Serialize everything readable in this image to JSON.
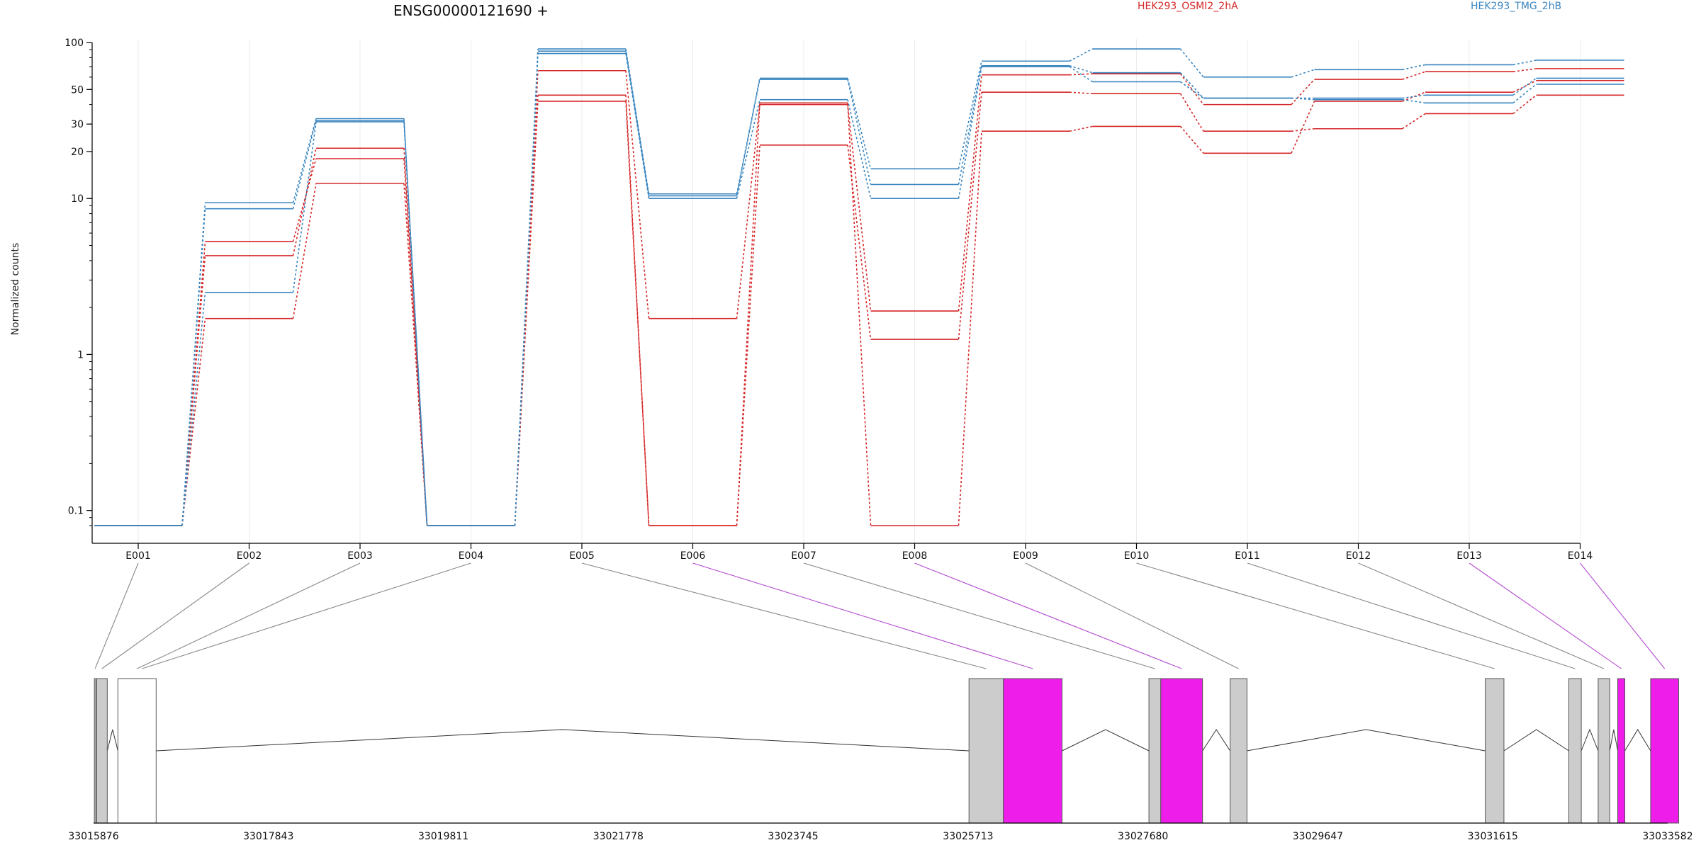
{
  "chart_data": {
    "type": "line",
    "title": "ENSG00000121690 +",
    "ylabel": "Normalized counts",
    "xlabel": "",
    "y_scale": "log",
    "ylim": [
      0.08,
      100
    ],
    "y_ticks": [
      "100",
      "50",
      "30",
      "20",
      "10",
      "1",
      "0.1"
    ],
    "y_tick_values": [
      100,
      50,
      30,
      20,
      10,
      1,
      0.1
    ],
    "grid": "vertical",
    "categories": [
      "E001",
      "E002",
      "E003",
      "E004",
      "E005",
      "E006",
      "E007",
      "E008",
      "E009",
      "E010",
      "E011",
      "E012",
      "E013",
      "E014"
    ],
    "legend": [
      {
        "name": "HEK293_OSMI2_2hA",
        "color": "#d62728"
      },
      {
        "name": "HEK293_TMG_2hB",
        "color": "#3a86c0"
      }
    ],
    "series": [
      {
        "condition": "HEK293_OSMI2_2hA",
        "color": "#d62728",
        "values": [
          0.08,
          4.3,
          21,
          0.08,
          66,
          1.7,
          40,
          1.9,
          62,
          63,
          40,
          58,
          65,
          68
        ]
      },
      {
        "condition": "HEK293_OSMI2_2hA",
        "color": "#d62728",
        "values": [
          0.08,
          5.3,
          18,
          0.08,
          46,
          0.08,
          22,
          1.25,
          48,
          47,
          27,
          28,
          35,
          46
        ]
      },
      {
        "condition": "HEK293_OSMI2_2hA",
        "color": "#d62728",
        "values": [
          0.08,
          1.7,
          12.5,
          0.08,
          42,
          0.08,
          41,
          0.08,
          27,
          29,
          19.5,
          42,
          48,
          57
        ]
      },
      {
        "condition": "HEK293_TMG_2hB",
        "color": "#3a86c0",
        "values": [
          0.08,
          9.4,
          32.5,
          0.08,
          91,
          10.7,
          59,
          15.5,
          76,
          91,
          60,
          67,
          72,
          77
        ]
      },
      {
        "condition": "HEK293_TMG_2hB",
        "color": "#3a86c0",
        "values": [
          0.08,
          8.6,
          31.5,
          0.08,
          88,
          10.4,
          58,
          12.3,
          71,
          64,
          44,
          44,
          46,
          59
        ]
      },
      {
        "condition": "HEK293_TMG_2hB",
        "color": "#3a86c0",
        "values": [
          0.08,
          2.5,
          31,
          0.08,
          85,
          10.0,
          43,
          10.0,
          70,
          56,
          44,
          43,
          41,
          54
        ]
      }
    ],
    "gene_model": {
      "coordinate_labels": [
        "33015876",
        "33017843",
        "33019811",
        "33021778",
        "33023745",
        "33025713",
        "33027680",
        "33029647",
        "33031615",
        "33033582"
      ],
      "coordinate_values": [
        33015876,
        33017843,
        33019811,
        33021778,
        33023745,
        33025713,
        33027680,
        33029647,
        33031615,
        33033582
      ],
      "exons": [
        {
          "exon": "E001",
          "start": 33015885,
          "end": 33015902,
          "fill": "#cccccc"
        },
        {
          "exon": "E002",
          "start": 33015910,
          "end": 33016030,
          "fill": "#cccccc"
        },
        {
          "exon": "E003",
          "start": 33016150,
          "end": 33016580,
          "fill": "#ffffff"
        },
        {
          "exon": "E005",
          "start": 33025723,
          "end": 33026110,
          "fill": "#cccccc"
        },
        {
          "exon": "E006",
          "start": 33026110,
          "end": 33026770,
          "fill": "#ee1de9"
        },
        {
          "exon": "E007",
          "start": 33027747,
          "end": 33027880,
          "fill": "#cccccc"
        },
        {
          "exon": "E008",
          "start": 33027880,
          "end": 33028350,
          "fill": "#ee1de9"
        },
        {
          "exon": "E009",
          "start": 33028660,
          "end": 33028850,
          "fill": "#cccccc"
        },
        {
          "exon": "E010",
          "start": 33031530,
          "end": 33031740,
          "fill": "#cccccc"
        },
        {
          "exon": "E011",
          "start": 33032470,
          "end": 33032610,
          "fill": "#cccccc"
        },
        {
          "exon": "E012",
          "start": 33032800,
          "end": 33032930,
          "fill": "#cccccc"
        },
        {
          "exon": "E013",
          "start": 33033020,
          "end": 33033100,
          "fill": "#ee1de9"
        },
        {
          "exon": "E014",
          "start": 33033390,
          "end": 33033705,
          "fill": "#ee1de9"
        }
      ],
      "highlighted_exons": [
        "E006",
        "E008",
        "E013",
        "E014"
      ]
    }
  }
}
